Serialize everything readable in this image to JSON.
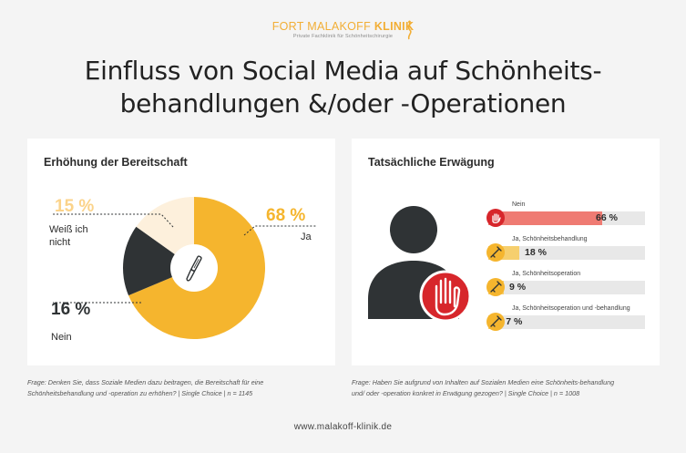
{
  "logo": {
    "brand_light": "FORT MALAKOFF",
    "brand_bold": "KLINIK",
    "tagline": "Private Fachklinik für Schönheitschirurgie"
  },
  "title": {
    "line1": "Einfluss von Social Media auf Schönheits-",
    "line2": "behandlungen &/oder -Operationen"
  },
  "colors": {
    "yellow": "#f5b52e",
    "dark": "#2f3335",
    "cream": "#fdf0dc",
    "red": "#d7262b",
    "salmon": "#ef7b73",
    "light_yellow": "#f6cf6e"
  },
  "chart_data": [
    {
      "type": "pie",
      "title": "Erhöhung der Bereitschaft",
      "categories": [
        "Ja",
        "Nein",
        "Weiß ich nicht"
      ],
      "values": [
        68,
        16,
        15
      ],
      "value_labels": [
        "68 %",
        "16 %",
        "15 %"
      ],
      "label_lines": [
        "Ja",
        "Nein",
        "Weiß ich",
        "nicht"
      ],
      "footnote": [
        "Frage: Denken Sie, dass Soziale Medien dazu beitragen, die Bereitschaft für eine",
        "Schönheitsbehandlung und -operation zu erhöhen? | Single Choice | n = 1145"
      ]
    },
    {
      "type": "bar",
      "title": "Tatsächliche Erwägung",
      "categories": [
        "Nein",
        "Ja, Schönheitsbehandlung",
        "Ja, Schönheitsoperation",
        "Ja, Schönheitsoperation und -behandlung"
      ],
      "values": [
        66,
        18,
        9,
        7
      ],
      "value_labels": [
        "66 %",
        "18 %",
        "9 %",
        "7 %"
      ],
      "xlim": [
        0,
        100
      ],
      "footnote": [
        "Frage: Haben Sie aufgrund von Inhalten auf Sozialen Medien eine Schönheits-behandlung",
        "und/ oder -operation konkret in Erwägung gezogen? | Single Choice | n = 1008"
      ]
    }
  ],
  "website": "www.malakoff-klinik.de"
}
